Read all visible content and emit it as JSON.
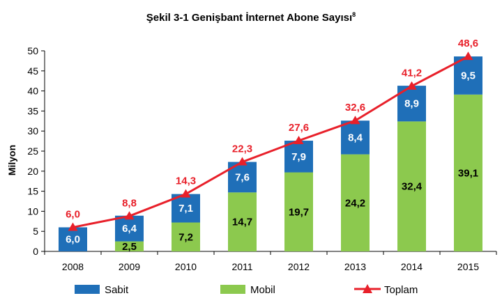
{
  "chart_data": {
    "type": "bar",
    "stacked": true,
    "title": "Şekil 3-1 Genişbant İnternet Abone Sayısı",
    "title_superscript": "8",
    "ylabel": "Milyon",
    "xlabel": "",
    "ylim": [
      0,
      50
    ],
    "yticks": [
      "0",
      "5",
      "10",
      "15",
      "20",
      "25",
      "30",
      "35",
      "40",
      "45",
      "50"
    ],
    "categories": [
      "2008",
      "2009",
      "2010",
      "2011",
      "2012",
      "2013",
      "2014",
      "2015"
    ],
    "series": [
      {
        "name": "Sabit",
        "color": "#1f6fb8",
        "label_color": "#ffffff",
        "values": [
          6.0,
          6.4,
          7.1,
          7.6,
          7.9,
          8.4,
          8.9,
          9.5
        ],
        "labels": [
          "6,0",
          "6,4",
          "7,1",
          "7,6",
          "7,9",
          "8,4",
          "8,9",
          "9,5"
        ]
      },
      {
        "name": "Mobil",
        "color": "#8cc94e",
        "label_color": "#000000",
        "values": [
          0,
          2.5,
          7.2,
          14.7,
          19.7,
          24.2,
          32.4,
          39.1
        ],
        "labels": [
          "",
          "2,5",
          "7,2",
          "14,7",
          "19,7",
          "24,2",
          "32,4",
          "39,1"
        ]
      }
    ],
    "total": {
      "name": "Toplam",
      "color": "#e8202a",
      "marker": "triangle",
      "values": [
        6.0,
        8.8,
        14.3,
        22.3,
        27.6,
        32.6,
        41.2,
        48.6
      ],
      "labels": [
        "6,0",
        "8,8",
        "14,3",
        "22,3",
        "27,6",
        "32,6",
        "41,2",
        "48,6"
      ]
    },
    "legend": "bottom",
    "grid": false
  }
}
